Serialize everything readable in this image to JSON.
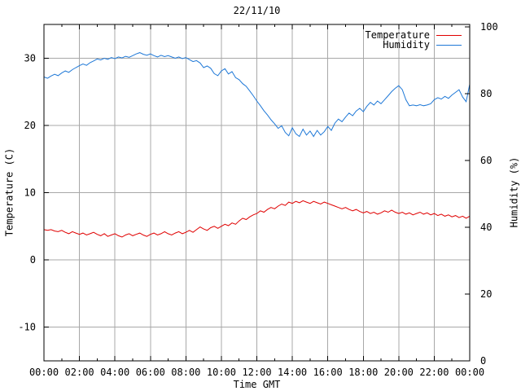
{
  "title": "22/11/10",
  "axes": {
    "x_label": "Time GMT",
    "y_left_label": "Temperature (C)",
    "y_right_label": "Humidity (%)",
    "x_ticks": [
      "00:00",
      "02:00",
      "04:00",
      "06:00",
      "08:00",
      "10:00",
      "12:00",
      "14:00",
      "16:00",
      "18:00",
      "20:00",
      "22:00",
      "00:00"
    ],
    "y_left_ticks": [
      "30",
      "20",
      "10",
      "0",
      "-10"
    ],
    "y_right_ticks": [
      "100",
      "80",
      "60",
      "40",
      "20",
      "0"
    ]
  },
  "legend": [
    {
      "label": "Temperature",
      "color": "#e00000"
    },
    {
      "label": "Humidity",
      "color": "#1e78d7"
    }
  ],
  "colors": {
    "background": "#ffffff",
    "border": "#000000",
    "grid": "#a8a8a8",
    "temperature": "#e00000",
    "humidity": "#1e78d7"
  },
  "chart_data": {
    "type": "line",
    "title": "22/11/10",
    "xlabel": "Time GMT",
    "ylabel_left": "Temperature (C)",
    "ylabel_right": "Humidity (%)",
    "x_unit": "hours GMT",
    "x_start": 0,
    "x_step": 0.2,
    "xlim": [
      0,
      24
    ],
    "ylim_left": [
      -15,
      35
    ],
    "ylim_right": [
      0,
      100
    ],
    "grid": true,
    "x_major_tick_hours": 2,
    "x_minor_tick_hours": 1,
    "legend_position": "top-right-inside",
    "series": [
      {
        "name": "Temperature",
        "axis": "left",
        "unit": "C",
        "color": "#e00000",
        "values": [
          4.5,
          4.4,
          4.5,
          4.3,
          4.2,
          4.4,
          4.1,
          3.9,
          4.2,
          4.0,
          3.8,
          4.0,
          3.7,
          3.9,
          4.1,
          3.8,
          3.6,
          3.9,
          3.5,
          3.7,
          3.9,
          3.6,
          3.4,
          3.7,
          3.9,
          3.6,
          3.8,
          4.0,
          3.7,
          3.5,
          3.8,
          4.0,
          3.7,
          3.9,
          4.2,
          3.9,
          3.7,
          4.0,
          4.2,
          3.9,
          4.1,
          4.4,
          4.1,
          4.5,
          4.9,
          4.6,
          4.4,
          4.8,
          5.0,
          4.7,
          5.0,
          5.3,
          5.1,
          5.5,
          5.3,
          5.8,
          6.2,
          6.0,
          6.4,
          6.7,
          6.9,
          7.3,
          7.1,
          7.5,
          7.8,
          7.6,
          8.0,
          8.3,
          8.1,
          8.6,
          8.4,
          8.7,
          8.5,
          8.8,
          8.6,
          8.4,
          8.7,
          8.5,
          8.3,
          8.6,
          8.4,
          8.2,
          8.0,
          7.8,
          7.6,
          7.8,
          7.5,
          7.3,
          7.5,
          7.2,
          7.0,
          7.2,
          6.9,
          7.1,
          6.8,
          7.0,
          7.3,
          7.1,
          7.4,
          7.1,
          6.9,
          7.1,
          6.8,
          7.0,
          6.7,
          6.9,
          7.1,
          6.8,
          7.0,
          6.7,
          6.9,
          6.6,
          6.8,
          6.5,
          6.7,
          6.4,
          6.6,
          6.3,
          6.5,
          6.2,
          6.5
        ]
      },
      {
        "name": "Humidity",
        "axis": "right",
        "unit": "%",
        "color": "#1e78d7",
        "values": [
          85.0,
          84.6,
          85.3,
          85.8,
          85.4,
          86.2,
          86.8,
          86.4,
          87.2,
          87.8,
          88.4,
          88.9,
          88.5,
          89.3,
          89.8,
          90.4,
          90.1,
          90.6,
          90.3,
          90.8,
          90.5,
          91.0,
          90.7,
          91.2,
          90.9,
          91.4,
          91.9,
          92.3,
          91.8,
          91.5,
          91.9,
          91.4,
          91.0,
          91.5,
          91.1,
          91.4,
          91.0,
          90.6,
          91.0,
          90.5,
          90.8,
          90.2,
          89.6,
          89.9,
          89.2,
          87.8,
          88.3,
          87.6,
          86.0,
          85.4,
          86.8,
          87.5,
          85.9,
          86.6,
          84.8,
          84.2,
          83.0,
          82.2,
          80.8,
          79.4,
          77.8,
          76.4,
          74.9,
          73.6,
          72.2,
          71.0,
          69.6,
          70.4,
          68.4,
          67.4,
          69.8,
          68.0,
          67.2,
          69.4,
          67.6,
          68.8,
          67.2,
          69.0,
          67.6,
          68.6,
          70.2,
          69.0,
          71.2,
          72.4,
          71.6,
          73.0,
          74.2,
          73.4,
          74.8,
          75.6,
          74.6,
          76.2,
          77.4,
          76.6,
          77.8,
          77.0,
          78.2,
          79.4,
          80.6,
          81.6,
          82.4,
          81.2,
          78.2,
          76.4,
          76.6,
          76.4,
          76.7,
          76.4,
          76.6,
          77.0,
          78.2,
          78.8,
          78.4,
          79.2,
          78.6,
          79.6,
          80.4,
          81.2,
          79.0,
          77.6,
          82.8
        ]
      }
    ]
  }
}
